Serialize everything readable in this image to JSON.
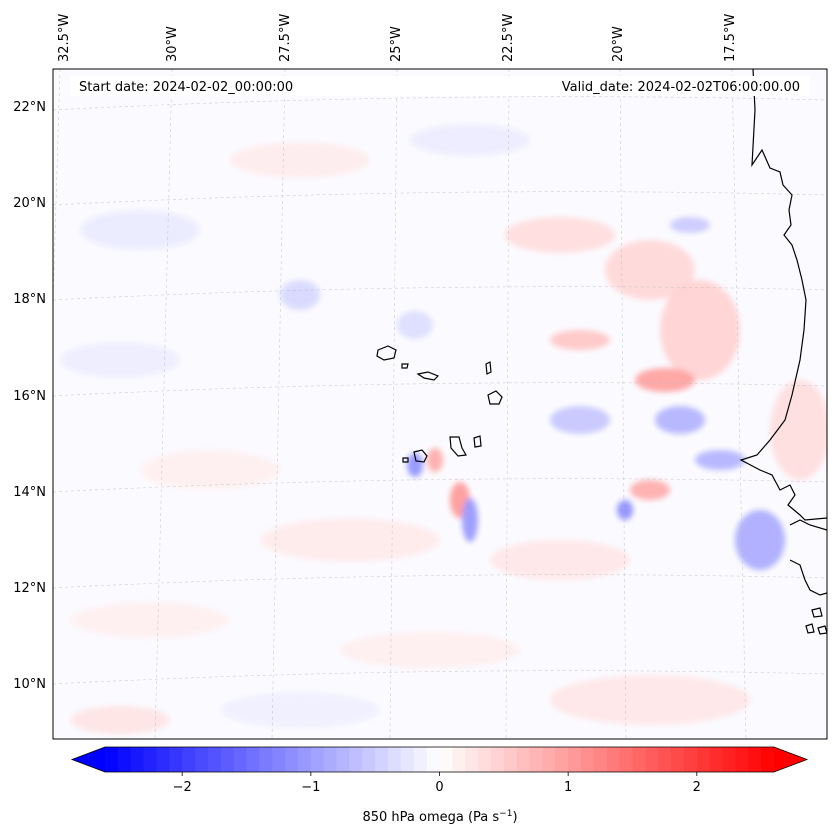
{
  "map": {
    "type": "contour-map",
    "projection": "lambert-conformal",
    "variable": "850 hPa omega",
    "start_date_text": "Start date: 2024-02-02_00:00:00",
    "valid_date_text": "Valid_date: 2024-02-02T06:00:00.00",
    "lon_labels": [
      "32.5°W",
      "30°W",
      "27.5°W",
      "25°W",
      "22.5°W",
      "20°W",
      "17.5°W"
    ],
    "lat_labels": [
      "22°N",
      "20°N",
      "18°N",
      "16°N",
      "14°N",
      "12°N",
      "10°N"
    ],
    "gridlines": true,
    "coastline_color": "#000000",
    "features": [
      "Cape Verde islands",
      "West African coastline (Senegal, Mauritania, Gambia, Guinea-Bissau)"
    ]
  },
  "colorbar": {
    "colormap": "bwr",
    "min_color": "#0000ff",
    "mid_color": "#ffffff",
    "max_color": "#ff0000",
    "range": [
      -2.6,
      2.6
    ],
    "extend": "both",
    "ticks": [
      "−2",
      "−1",
      "0",
      "1",
      "2"
    ],
    "tick_values": [
      -2,
      -1,
      0,
      1,
      2
    ],
    "label_main": "850 hPa omega (Pa s",
    "label_exp": "−1",
    "label_close": ")"
  }
}
